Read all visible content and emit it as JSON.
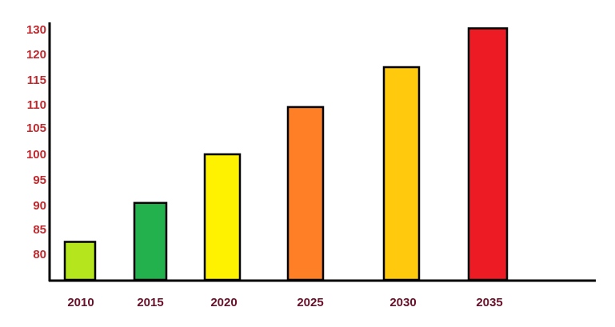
{
  "chart_data": {
    "type": "bar",
    "title": "",
    "xlabel": "",
    "ylabel": "",
    "categories": [
      "2010",
      "2015",
      "2020",
      "2025",
      "2030",
      "2035"
    ],
    "values": [
      82.5,
      90.5,
      100,
      109.5,
      117.5,
      130.5
    ],
    "bar_colors": [
      "#b5e61d",
      "#22b14c",
      "#fff200",
      "#ff7f27",
      "#ffc90e",
      "#ed1c24"
    ],
    "yticks": [
      "80",
      "85",
      "90",
      "95",
      "100",
      "105",
      "110",
      "115",
      "120",
      "130"
    ],
    "ytick_color": "#c0282d",
    "xtick_color": "#6b0f2a",
    "grid": false,
    "legend": "none"
  }
}
